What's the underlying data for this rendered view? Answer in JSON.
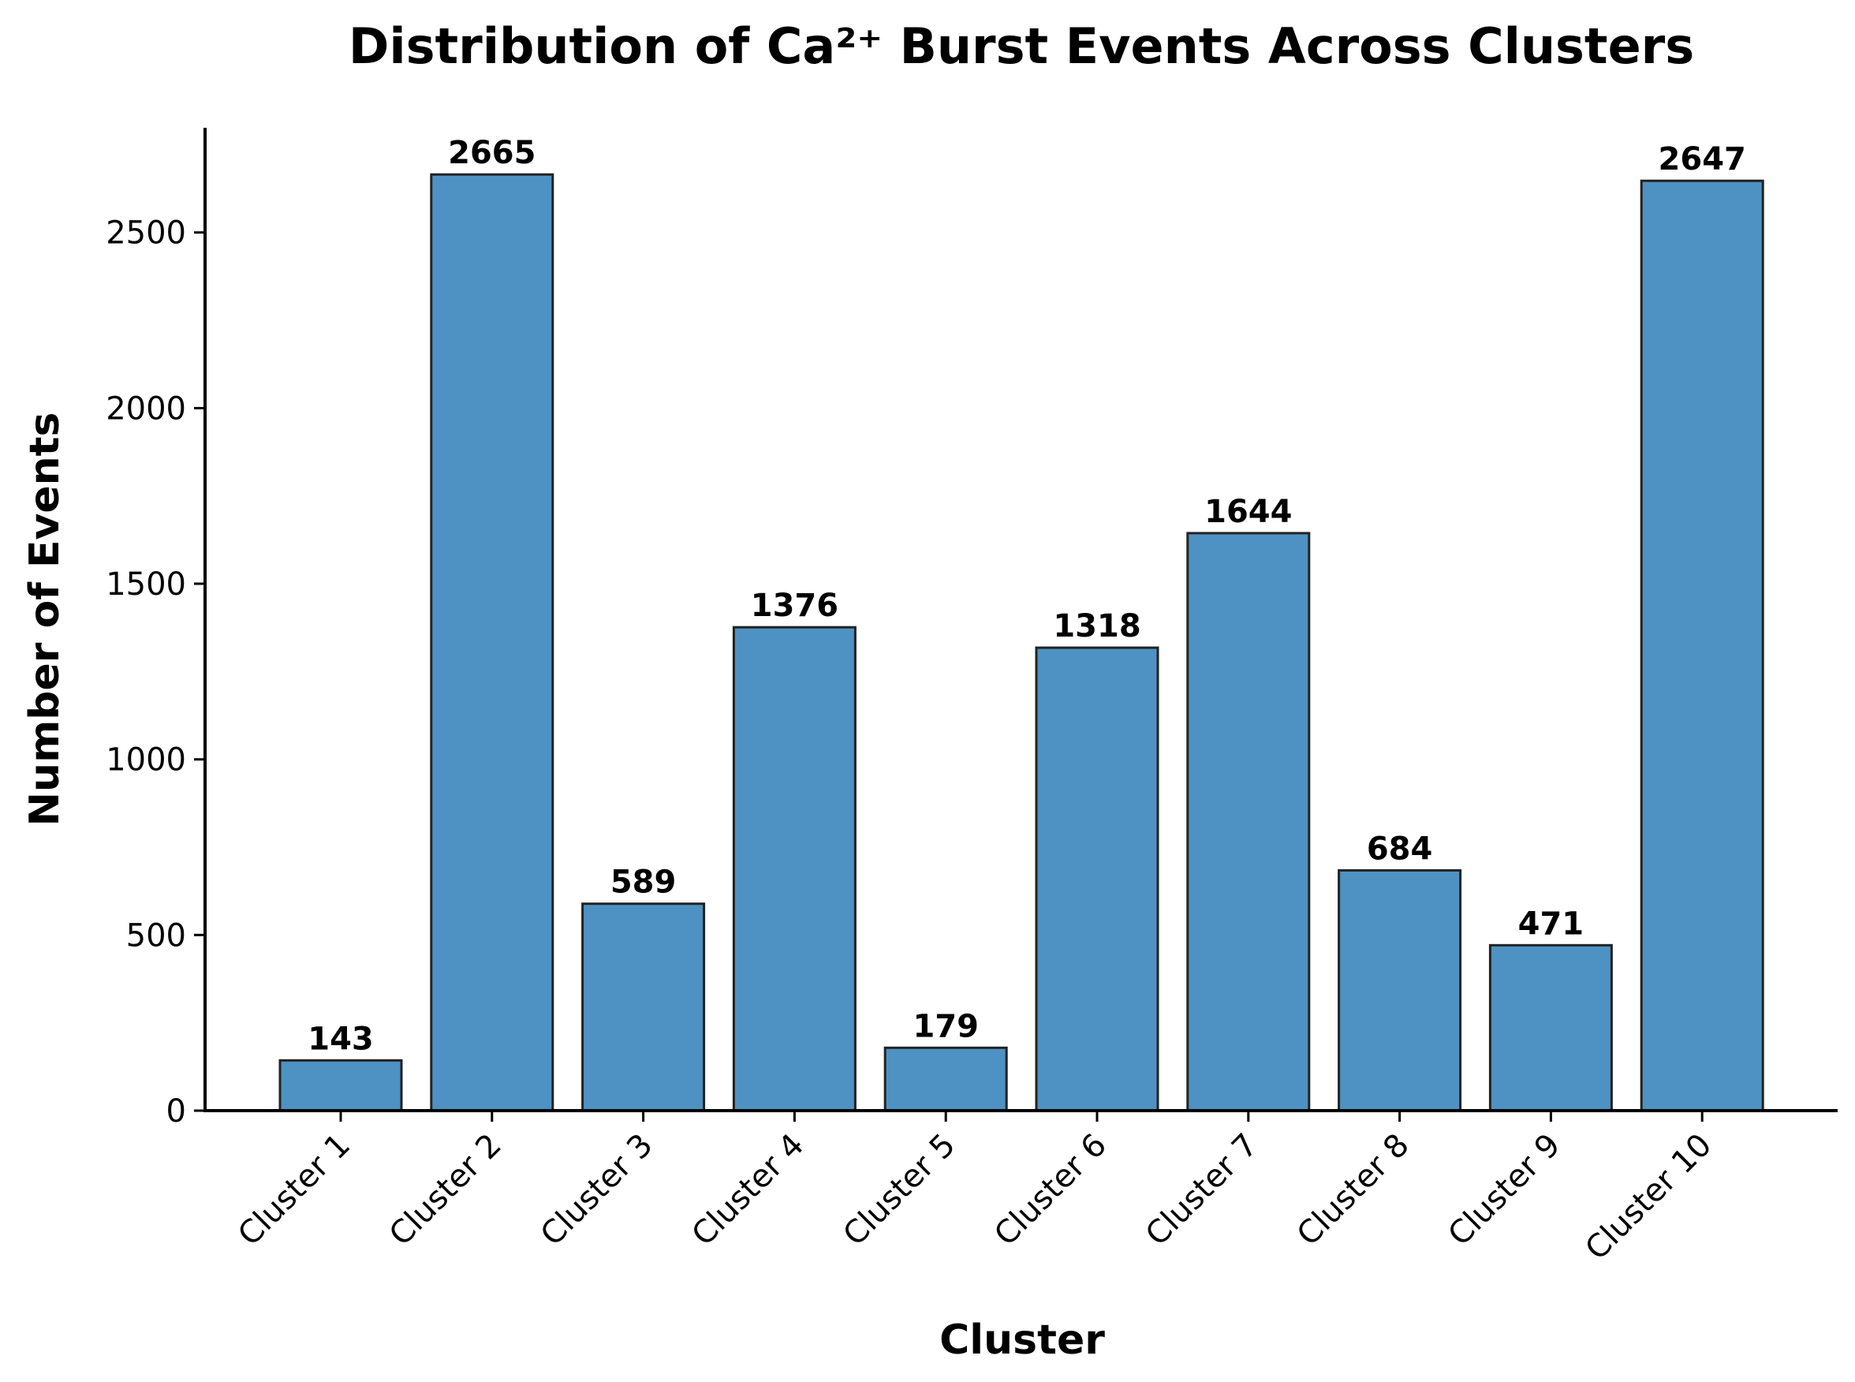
{
  "chart_data": {
    "type": "bar",
    "title": "Distribution of Ca²⁺ Burst Events Across Clusters",
    "xlabel": "Cluster",
    "ylabel": "Number of Events",
    "categories": [
      "Cluster 1",
      "Cluster 2",
      "Cluster 3",
      "Cluster 4",
      "Cluster 5",
      "Cluster 6",
      "Cluster 7",
      "Cluster 8",
      "Cluster 9",
      "Cluster 10"
    ],
    "values": [
      143,
      2665,
      589,
      1376,
      179,
      1318,
      1644,
      684,
      471,
      2647
    ],
    "data_labels": [
      "143",
      "2665",
      "589",
      "1376",
      "179",
      "1318",
      "1644",
      "684",
      "471",
      "2647"
    ],
    "yticks": [
      0,
      500,
      1000,
      1500,
      2000,
      2500
    ],
    "ytick_labels": [
      "0",
      "500",
      "1000",
      "1500",
      "2000",
      "2500"
    ],
    "ylim": [
      0,
      2798
    ],
    "grid": false,
    "colors": {
      "bar_fill": "#4d92c3",
      "bar_edge": "#222222"
    }
  }
}
